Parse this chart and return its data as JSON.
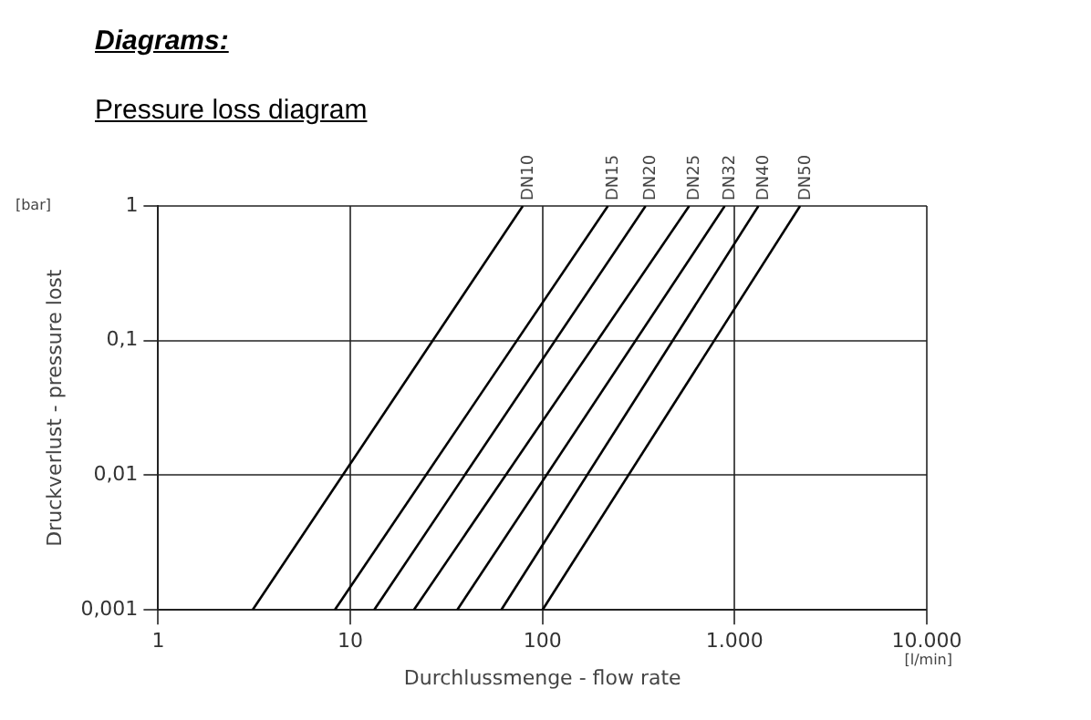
{
  "chart_data": {
    "type": "line",
    "title": "Diagrams:",
    "subtitle": "Pressure loss diagram",
    "xlabel": "Durchlussmenge - flow rate",
    "ylabel": "Druckverlust - pressure lost",
    "annotations": [
      "[bar]",
      "[l/min]"
    ],
    "log": "xy",
    "grid": true,
    "legend": false,
    "marker": "none",
    "line_style": "solid",
    "xlim": [
      1,
      10000
    ],
    "xticks": [
      1,
      10,
      100,
      {
        "value": 1000,
        "label": "1.000"
      },
      {
        "value": 10000,
        "label": "10.000"
      }
    ],
    "ylim": [
      0.001,
      1
    ],
    "yticks": [
      {
        "value": 0.001,
        "label": "0,001"
      },
      {
        "value": 0.01,
        "label": "0,01"
      },
      {
        "value": 0.1,
        "label": "0,1"
      },
      1
    ],
    "series": [
      {
        "name": "DN10",
        "color": "#000000",
        "x": [
          3.1,
          79
        ],
        "values": [
          0.001,
          1
        ]
      },
      {
        "name": "DN15",
        "color": "#000000",
        "x": [
          8.3,
          219
        ],
        "values": [
          0.001,
          1
        ]
      },
      {
        "name": "DN20",
        "color": "#000000",
        "x": [
          13.3,
          344
        ],
        "values": [
          0.001,
          1
        ]
      },
      {
        "name": "DN25",
        "color": "#000000",
        "x": [
          21.4,
          580
        ],
        "values": [
          0.001,
          1
        ]
      },
      {
        "name": "DN32",
        "color": "#000000",
        "x": [
          36,
          888
        ],
        "values": [
          0.001,
          1
        ]
      },
      {
        "name": "DN40",
        "color": "#000000",
        "x": [
          61,
          1330
        ],
        "values": [
          0.001,
          1
        ]
      },
      {
        "name": "DN50",
        "color": "#000000",
        "x": [
          100,
          2190
        ],
        "values": [
          0.001,
          1
        ]
      }
    ]
  }
}
